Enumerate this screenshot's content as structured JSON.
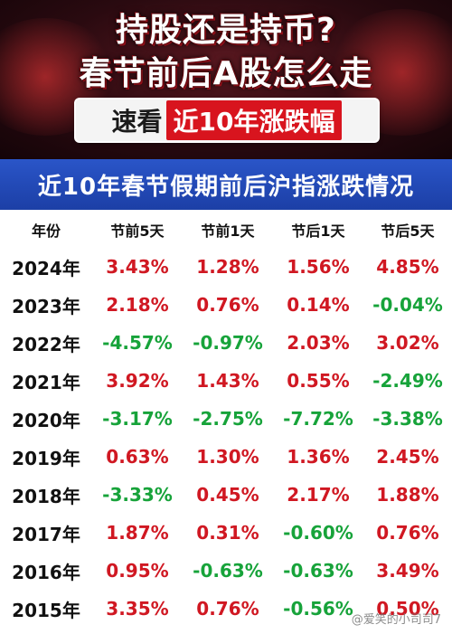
{
  "banner": {
    "line1": "持股还是持币?",
    "line2": "春节前后A股怎么走",
    "sub_prefix": "速看",
    "sub_highlight": "近10年涨跌幅"
  },
  "table_title": "近10年春节假期前后沪指涨跌情况",
  "headers": [
    "年份",
    "节前5天",
    "节前1天",
    "节后1天",
    "节后5天"
  ],
  "rows": [
    {
      "year": "2024年",
      "v": [
        "3.43%",
        "1.28%",
        "1.56%",
        "4.85%"
      ],
      "s": [
        "pos",
        "pos",
        "pos",
        "pos"
      ]
    },
    {
      "year": "2023年",
      "v": [
        "2.18%",
        "0.76%",
        "0.14%",
        "-0.04%"
      ],
      "s": [
        "pos",
        "pos",
        "pos",
        "neg"
      ]
    },
    {
      "year": "2022年",
      "v": [
        "-4.57%",
        "-0.97%",
        "2.03%",
        "3.02%"
      ],
      "s": [
        "neg",
        "neg",
        "pos",
        "pos"
      ]
    },
    {
      "year": "2021年",
      "v": [
        "3.92%",
        "1.43%",
        "0.55%",
        "-2.49%"
      ],
      "s": [
        "pos",
        "pos",
        "pos",
        "neg"
      ]
    },
    {
      "year": "2020年",
      "v": [
        "-3.17%",
        "-2.75%",
        "-7.72%",
        "-3.38%"
      ],
      "s": [
        "neg",
        "neg",
        "neg",
        "neg"
      ]
    },
    {
      "year": "2019年",
      "v": [
        "0.63%",
        "1.30%",
        "1.36%",
        "2.45%"
      ],
      "s": [
        "pos",
        "pos",
        "pos",
        "pos"
      ]
    },
    {
      "year": "2018年",
      "v": [
        "-3.33%",
        "0.45%",
        "2.17%",
        "1.88%"
      ],
      "s": [
        "neg",
        "pos",
        "pos",
        "pos"
      ]
    },
    {
      "year": "2017年",
      "v": [
        "1.87%",
        "0.31%",
        "-0.60%",
        "0.76%"
      ],
      "s": [
        "pos",
        "pos",
        "neg",
        "pos"
      ]
    },
    {
      "year": "2016年",
      "v": [
        "0.95%",
        "-0.63%",
        "-0.63%",
        "3.49%"
      ],
      "s": [
        "pos",
        "neg",
        "neg",
        "pos"
      ]
    },
    {
      "year": "2015年",
      "v": [
        "3.35%",
        "0.76%",
        "-0.56%",
        "0.50%"
      ],
      "s": [
        "pos",
        "pos",
        "neg",
        "pos"
      ]
    }
  ],
  "colors": {
    "positive": "#d01822",
    "negative": "#17a33a",
    "title_bar": "#2a55c8"
  },
  "watermark": "@爱笑的小司司7"
}
